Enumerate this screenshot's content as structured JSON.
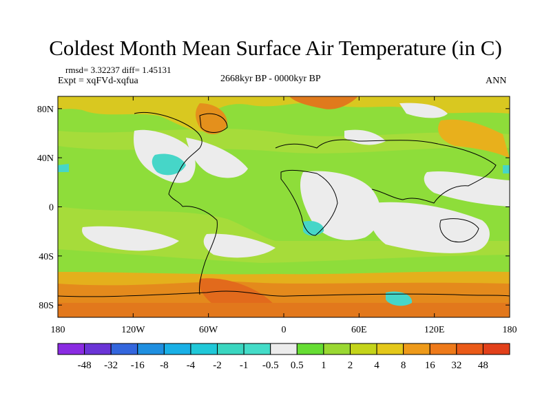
{
  "title": "Coldest Month Mean Surface Air Temperature (in C)",
  "stats": "rmsd= 3.32237 diff= 1.45131",
  "experiment": "Expt = xqFVd-xqfua",
  "period": "2668kyr BP - 0000kyr BP",
  "season": "ANN",
  "axes": {
    "lat_ticks": [
      {
        "value": 80,
        "label": "80N"
      },
      {
        "value": 40,
        "label": "40N"
      },
      {
        "value": 0,
        "label": "0"
      },
      {
        "value": -40,
        "label": "40S"
      },
      {
        "value": -80,
        "label": "80S"
      }
    ],
    "lon_ticks": [
      {
        "value": -180,
        "label": "180"
      },
      {
        "value": -120,
        "label": "120W"
      },
      {
        "value": -60,
        "label": "60W"
      },
      {
        "value": 0,
        "label": "0"
      },
      {
        "value": 60,
        "label": "60E"
      },
      {
        "value": 120,
        "label": "120E"
      },
      {
        "value": 180,
        "label": "180"
      }
    ],
    "lon_range": [
      -180,
      180
    ],
    "lat_range": [
      -90,
      90
    ]
  },
  "colorbar": {
    "labels": [
      "-48",
      "-32",
      "-16",
      "-8",
      "-4",
      "-2",
      "-1",
      "-0.5",
      "0.5",
      "1",
      "2",
      "4",
      "8",
      "16",
      "32",
      "48"
    ],
    "colors": [
      "#8a2be2",
      "#6a34d6",
      "#3366dd",
      "#1f8fe0",
      "#19b0e6",
      "#20c8d8",
      "#3ad6c0",
      "#44dcc8",
      "#ececec",
      "#66dd33",
      "#9ad832",
      "#c4d41a",
      "#e4c81a",
      "#ee9a1a",
      "#ee7a1a",
      "#ea5a18",
      "#e2401a"
    ]
  },
  "colors": {
    "background_field": "#8edd3a",
    "warm": "#e8a01c",
    "hot": "#e26a1c",
    "neutral": "#ececec",
    "cool": "#46d6c8"
  }
}
